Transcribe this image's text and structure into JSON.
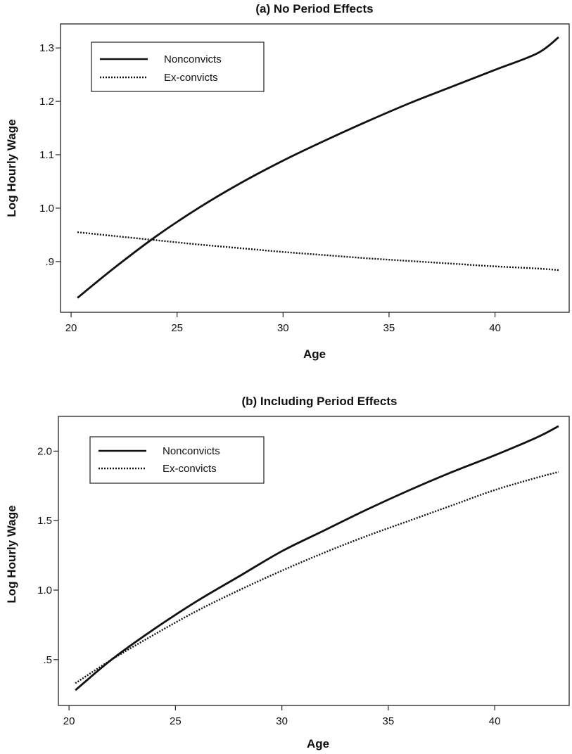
{
  "chart_data": [
    {
      "type": "line",
      "title": "(a) No Period Effects",
      "xlabel": "Age",
      "ylabel": "Log Hourly Wage",
      "xlim": [
        19.5,
        43.5
      ],
      "ylim": [
        0.805,
        1.345
      ],
      "xticks": [
        20,
        25,
        30,
        35,
        40
      ],
      "xtick_labels": [
        "20",
        "25",
        "30",
        "35",
        "40"
      ],
      "yticks": [
        0.9,
        1.0,
        1.1,
        1.2,
        1.3
      ],
      "ytick_labels": [
        ".9",
        "1.0",
        "1.1",
        "1.2",
        "1.3"
      ],
      "grid": false,
      "legend_position": "top-left",
      "x": [
        20.3,
        22,
        24,
        26,
        28,
        30,
        32,
        34,
        36,
        38,
        40,
        42,
        43
      ],
      "series": [
        {
          "name": "Nonconvicts",
          "style": "solid",
          "values": [
            0.832,
            0.887,
            0.947,
            1.0,
            1.047,
            1.089,
            1.127,
            1.163,
            1.197,
            1.228,
            1.259,
            1.29,
            1.32
          ]
        },
        {
          "name": "Ex-convicts",
          "style": "dotted",
          "values": [
            0.955,
            0.948,
            0.94,
            0.932,
            0.925,
            0.918,
            0.912,
            0.906,
            0.901,
            0.896,
            0.891,
            0.887,
            0.884
          ]
        }
      ]
    },
    {
      "type": "line",
      "title": "(b) Including Period Effects",
      "xlabel": "Age",
      "ylabel": "Log Hourly Wage",
      "xlim": [
        19.5,
        43.5
      ],
      "ylim": [
        0.17,
        2.25
      ],
      "xticks": [
        20,
        25,
        30,
        35,
        40
      ],
      "xtick_labels": [
        "20",
        "25",
        "30",
        "35",
        "40"
      ],
      "yticks": [
        0.5,
        1.0,
        1.5,
        2.0
      ],
      "ytick_labels": [
        ".5",
        "1.0",
        "1.5",
        "2.0"
      ],
      "grid": false,
      "legend_position": "top-left",
      "x": [
        20.3,
        22,
        24,
        26,
        28,
        30,
        32,
        34,
        36,
        38,
        40,
        42,
        43
      ],
      "series": [
        {
          "name": "Nonconvicts",
          "style": "solid",
          "values": [
            0.28,
            0.5,
            0.72,
            0.92,
            1.1,
            1.28,
            1.43,
            1.58,
            1.72,
            1.85,
            1.97,
            2.1,
            2.18
          ]
        },
        {
          "name": "Ex-convicts",
          "style": "dotted",
          "values": [
            0.33,
            0.5,
            0.68,
            0.85,
            1.0,
            1.14,
            1.27,
            1.39,
            1.5,
            1.61,
            1.72,
            1.81,
            1.85
          ]
        }
      ]
    }
  ]
}
